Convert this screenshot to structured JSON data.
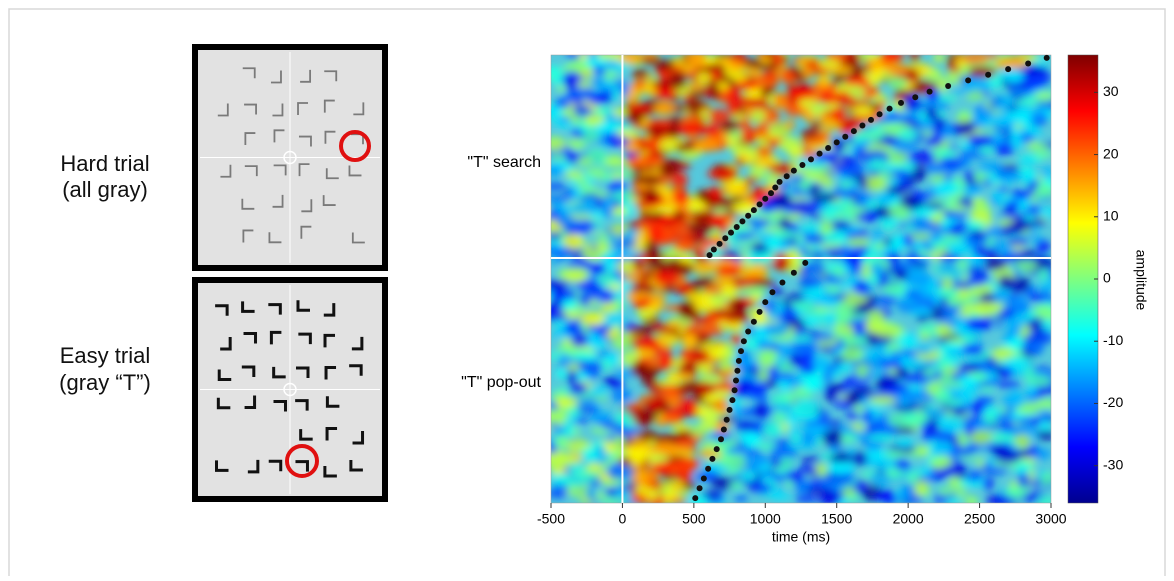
{
  "conditions": [
    [
      "Hard trial",
      "(all gray)"
    ],
    [
      "Easy trial",
      "(gray “T”)"
    ]
  ],
  "chart_data": {
    "type": "erp-image",
    "xlabel": "time (ms)",
    "xlim": [
      -500,
      3000
    ],
    "xticks": [
      -500,
      0,
      500,
      1000,
      1500,
      2000,
      2500,
      3000
    ],
    "colorbar": {
      "label": "amplitude",
      "lim": [
        -36,
        36
      ],
      "ticks": [
        30,
        20,
        10,
        0,
        -10,
        -20,
        -30
      ]
    },
    "series": [
      {
        "name": "\"T\" search",
        "color": "#111111",
        "values": [
          610,
          640,
          680,
          720,
          760,
          800,
          840,
          880,
          920,
          960,
          1000,
          1040,
          1070,
          1100,
          1150,
          1200,
          1260,
          1320,
          1380,
          1440,
          1500,
          1560,
          1620,
          1680,
          1740,
          1800,
          1870,
          1950,
          2050,
          2150,
          2280,
          2420,
          2560,
          2700,
          2840,
          2970
        ]
      },
      {
        "name": "\"T\" pop-out",
        "color": "#111111",
        "values": [
          510,
          540,
          570,
          600,
          630,
          660,
          690,
          710,
          730,
          750,
          770,
          785,
          795,
          805,
          815,
          830,
          850,
          880,
          920,
          960,
          1000,
          1050,
          1120,
          1200,
          1280
        ]
      }
    ]
  }
}
